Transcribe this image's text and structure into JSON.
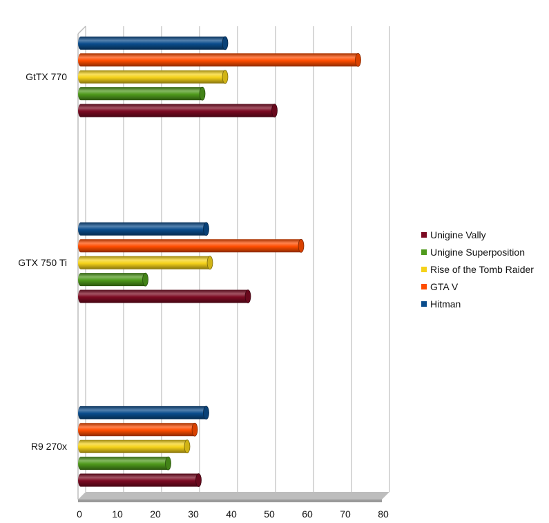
{
  "chart_data": {
    "type": "bar",
    "orientation": "horizontal",
    "style": "3d-cylinder",
    "categories": [
      "GtTX 770",
      "GTX 750 Ti",
      "R9 270x"
    ],
    "series": [
      {
        "name": "Unigine Vally",
        "color": "#7b0a22",
        "values": [
          51,
          44,
          31
        ]
      },
      {
        "name": "Unigine Superposition",
        "color": "#4f9a1c",
        "values": [
          32,
          17,
          23
        ]
      },
      {
        "name": "Rise of the Tomb Raider",
        "color": "#f5d21a",
        "values": [
          38,
          34,
          28
        ]
      },
      {
        "name": "GTA V",
        "color": "#ff4d00",
        "values": [
          73,
          58,
          30
        ]
      },
      {
        "name": "Hitman",
        "color": "#0a4c8c",
        "values": [
          38,
          33,
          33
        ]
      }
    ],
    "xlim": [
      0,
      80
    ],
    "xticks": [
      "0",
      "10",
      "20",
      "30",
      "40",
      "50",
      "60",
      "70",
      "80"
    ],
    "grid": true,
    "legend_position": "right"
  }
}
